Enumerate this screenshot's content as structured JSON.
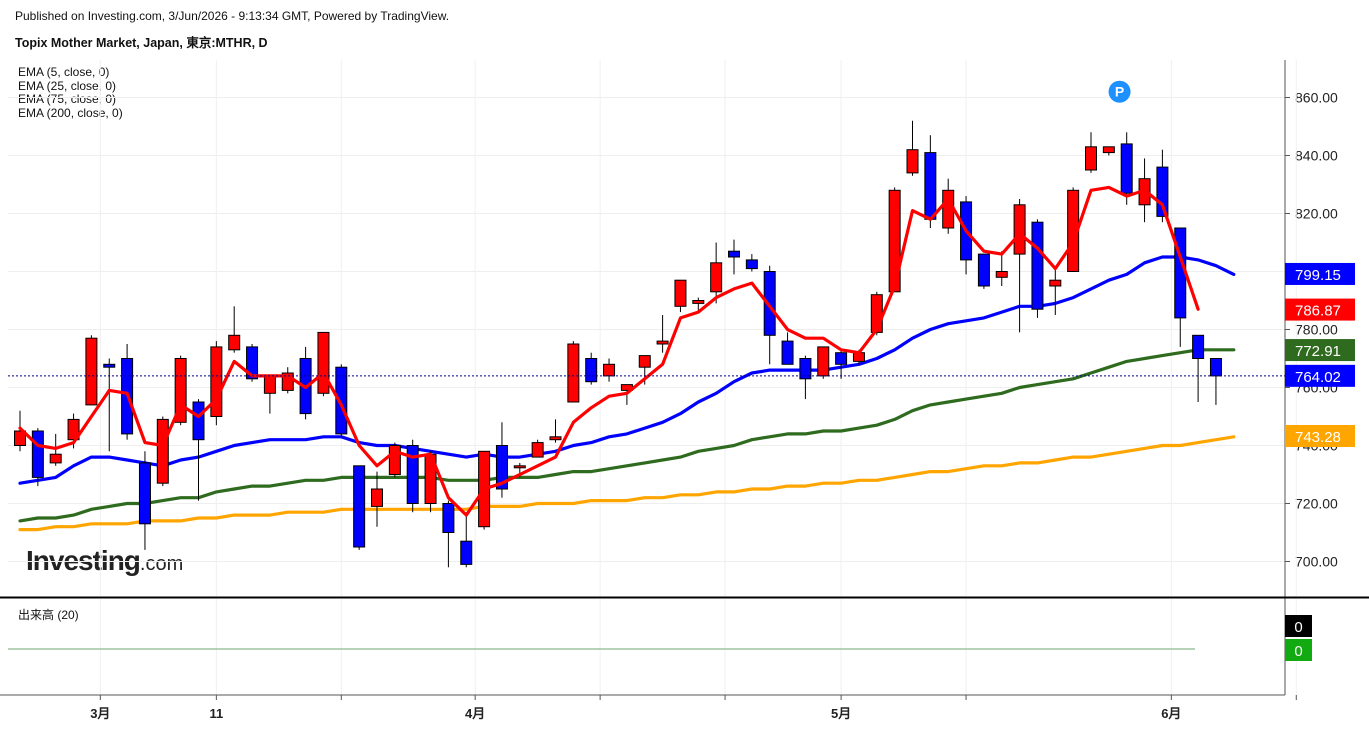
{
  "header": {
    "published": "Published on Investing.com, 3/Jun/2026 - 9:13:34 GMT, Powered by TradingView.",
    "title": "Topix Mother Market, Japan, 東京:MTHR, D"
  },
  "legend": [
    {
      "label": "EMA (5, close, 0)",
      "color": "#ff0000"
    },
    {
      "label": "EMA (25, close, 0)",
      "color": "#0000ff"
    },
    {
      "label": "EMA (75, close, 0)",
      "color": "#2e6b1f"
    },
    {
      "label": "EMA (200, close, 0)",
      "color": "#ffa500"
    }
  ],
  "volume_panel": {
    "label": "出来高 (20)",
    "badges": [
      {
        "text": "0",
        "bg": "#000000"
      },
      {
        "text": "0",
        "bg": "#11aa11"
      }
    ]
  },
  "logo": {
    "main": "Investing",
    "suffix": ".com"
  },
  "marker_label": "P",
  "colors": {
    "up": "#ff0000",
    "down": "#0000ff",
    "wick": "#000000",
    "ema5": "#ff0000",
    "ema25": "#0000ff",
    "ema75": "#2e6b1f",
    "ema200": "#ffa500",
    "marker": "#1e90ff",
    "last_price_line": "#00008b"
  },
  "chart_data": {
    "type": "candlestick",
    "title": "Topix Mother Market, Japan, 東京:MTHR, D",
    "ylim": [
      690,
      868
    ],
    "y_ticks": [
      700,
      720,
      740,
      760,
      780,
      800,
      820,
      840,
      860
    ],
    "y_tick_labels": [
      "700.00",
      "720.00",
      "740.00",
      "760.00",
      "780.00",
      "800.00",
      "820.00",
      "840.00",
      "860.00"
    ],
    "x_labels": [
      {
        "text": "3月",
        "index": 4.5
      },
      {
        "text": "11",
        "index": 11
      },
      {
        "text": "4月",
        "index": 25.5
      },
      {
        "text": "5月",
        "index": 46
      },
      {
        "text": "6月",
        "index": 64.5
      }
    ],
    "x_ticks": [
      4.5,
      11,
      18,
      25.5,
      32.5,
      39.5,
      46,
      53,
      64.5,
      71.5
    ],
    "n_slots": 72,
    "last_price": 764.02,
    "price_badges": [
      {
        "value": 799.15,
        "text": "799.15",
        "series": "ema25"
      },
      {
        "value": 786.87,
        "text": "786.87",
        "series": "ema5"
      },
      {
        "value": 772.91,
        "text": "772.91",
        "series": "ema75"
      },
      {
        "value": 764.02,
        "text": "764.02",
        "series": "last"
      },
      {
        "value": 743.28,
        "text": "743.28",
        "series": "ema200"
      }
    ],
    "candles": [
      {
        "o": 740,
        "h": 752,
        "l": 738,
        "c": 745
      },
      {
        "o": 745,
        "h": 746,
        "l": 726,
        "c": 729
      },
      {
        "o": 734,
        "h": 744,
        "l": 733,
        "c": 737
      },
      {
        "o": 742,
        "h": 751,
        "l": 739,
        "c": 749
      },
      {
        "o": 754,
        "h": 778,
        "l": 754,
        "c": 777
      },
      {
        "o": 768,
        "h": 770,
        "l": 738,
        "c": 767
      },
      {
        "o": 770,
        "h": 775,
        "l": 742,
        "c": 744
      },
      {
        "o": 734,
        "h": 738,
        "l": 704,
        "c": 713
      },
      {
        "o": 727,
        "h": 750,
        "l": 726,
        "c": 749
      },
      {
        "o": 748,
        "h": 771,
        "l": 747,
        "c": 770
      },
      {
        "o": 755,
        "h": 756,
        "l": 721,
        "c": 742
      },
      {
        "o": 750,
        "h": 776,
        "l": 747,
        "c": 774
      },
      {
        "o": 773,
        "h": 788,
        "l": 772,
        "c": 778
      },
      {
        "o": 774,
        "h": 775,
        "l": 762,
        "c": 763
      },
      {
        "o": 758,
        "h": 764,
        "l": 751,
        "c": 764
      },
      {
        "o": 759,
        "h": 767,
        "l": 758,
        "c": 765
      },
      {
        "o": 770,
        "h": 774,
        "l": 749,
        "c": 751
      },
      {
        "o": 758,
        "h": 779,
        "l": 757,
        "c": 779
      },
      {
        "o": 767,
        "h": 768,
        "l": 743,
        "c": 744
      },
      {
        "o": 733,
        "h": 733,
        "l": 704,
        "c": 705
      },
      {
        "o": 719,
        "h": 731,
        "l": 712,
        "c": 725
      },
      {
        "o": 730,
        "h": 741,
        "l": 729,
        "c": 740
      },
      {
        "o": 740,
        "h": 742,
        "l": 717,
        "c": 720
      },
      {
        "o": 720,
        "h": 738,
        "l": 717,
        "c": 737
      },
      {
        "o": 720,
        "h": 721,
        "l": 698,
        "c": 710
      },
      {
        "o": 707,
        "h": 717,
        "l": 698,
        "c": 699
      },
      {
        "o": 712,
        "h": 738,
        "l": 711,
        "c": 738
      },
      {
        "o": 740,
        "h": 748,
        "l": 722,
        "c": 725
      },
      {
        "o": 733,
        "h": 734,
        "l": 729,
        "c": 733
      },
      {
        "o": 736,
        "h": 742,
        "l": 736,
        "c": 741
      },
      {
        "o": 742,
        "h": 749,
        "l": 741,
        "c": 743
      },
      {
        "o": 755,
        "h": 776,
        "l": 755,
        "c": 775
      },
      {
        "o": 770,
        "h": 772,
        "l": 761,
        "c": 762
      },
      {
        "o": 764,
        "h": 770,
        "l": 762,
        "c": 768
      },
      {
        "o": 759,
        "h": 761,
        "l": 754,
        "c": 761
      },
      {
        "o": 767,
        "h": 770,
        "l": 761,
        "c": 771
      },
      {
        "o": 775,
        "h": 785,
        "l": 772,
        "c": 776
      },
      {
        "o": 788,
        "h": 797,
        "l": 786,
        "c": 797
      },
      {
        "o": 789,
        "h": 791,
        "l": 786,
        "c": 790
      },
      {
        "o": 793,
        "h": 810,
        "l": 789,
        "c": 803
      },
      {
        "o": 807,
        "h": 811,
        "l": 799,
        "c": 805
      },
      {
        "o": 804,
        "h": 806,
        "l": 800,
        "c": 801
      },
      {
        "o": 800,
        "h": 802,
        "l": 768,
        "c": 778
      },
      {
        "o": 776,
        "h": 779,
        "l": 768,
        "c": 768
      },
      {
        "o": 770,
        "h": 771,
        "l": 756,
        "c": 763
      },
      {
        "o": 764,
        "h": 774,
        "l": 763,
        "c": 774
      },
      {
        "o": 772,
        "h": 773,
        "l": 763,
        "c": 768
      },
      {
        "o": 769,
        "h": 773,
        "l": 768,
        "c": 772
      },
      {
        "o": 779,
        "h": 793,
        "l": 778,
        "c": 792
      },
      {
        "o": 793,
        "h": 829,
        "l": 793,
        "c": 828
      },
      {
        "o": 834,
        "h": 852,
        "l": 833,
        "c": 842
      },
      {
        "o": 841,
        "h": 847,
        "l": 815,
        "c": 818
      },
      {
        "o": 815,
        "h": 832,
        "l": 813,
        "c": 828
      },
      {
        "o": 824,
        "h": 826,
        "l": 799,
        "c": 804
      },
      {
        "o": 806,
        "h": 806,
        "l": 794,
        "c": 795
      },
      {
        "o": 798,
        "h": 807,
        "l": 795,
        "c": 800
      },
      {
        "o": 806,
        "h": 825,
        "l": 779,
        "c": 823
      },
      {
        "o": 817,
        "h": 818,
        "l": 784,
        "c": 787
      },
      {
        "o": 795,
        "h": 801,
        "l": 785,
        "c": 797
      },
      {
        "o": 800,
        "h": 829,
        "l": 800,
        "c": 828
      },
      {
        "o": 835,
        "h": 848,
        "l": 834,
        "c": 843
      },
      {
        "o": 841,
        "h": 843,
        "l": 840,
        "c": 843
      },
      {
        "o": 844,
        "h": 848,
        "l": 823,
        "c": 827
      },
      {
        "o": 823,
        "h": 839,
        "l": 817,
        "c": 832
      },
      {
        "o": 836,
        "h": 842,
        "l": 817,
        "c": 819
      },
      {
        "o": 815,
        "h": 815,
        "l": 774,
        "c": 784
      },
      {
        "o": 778,
        "h": 778,
        "l": 755,
        "c": 770
      },
      {
        "o": 770,
        "h": 770,
        "l": 754,
        "c": 764
      }
    ],
    "series": [
      {
        "name": "EMA (5, close, 0)",
        "key": "ema5",
        "x0": 0,
        "values": [
          746,
          740,
          739,
          741,
          750,
          759,
          758,
          741,
          740,
          754,
          750,
          756,
          769,
          764,
          764,
          764,
          760,
          765,
          754,
          740,
          733,
          738,
          736,
          737,
          722,
          716,
          725,
          727,
          730,
          733,
          736,
          748,
          753,
          757,
          758,
          763,
          768,
          784,
          786,
          791,
          794,
          796,
          788,
          780,
          777,
          777,
          773,
          772,
          780,
          795,
          821,
          818,
          825,
          814,
          807,
          806,
          813,
          808,
          801,
          810,
          828,
          829,
          826,
          828,
          823,
          805,
          787
        ]
      },
      {
        "name": "EMA (25, close, 0)",
        "key": "ema25",
        "x0": 0,
        "values": [
          727,
          728,
          729,
          733,
          736,
          736,
          735,
          734,
          733,
          735,
          736,
          738,
          740,
          741,
          742,
          742,
          742,
          743,
          743,
          741,
          740,
          740,
          739,
          738,
          737,
          736,
          737,
          736,
          736,
          737,
          738,
          740,
          741,
          743,
          744,
          746,
          748,
          751,
          755,
          758,
          762,
          765,
          766,
          766,
          766,
          766,
          767,
          768,
          770,
          773,
          777,
          780,
          782,
          783,
          784,
          786,
          788,
          788,
          789,
          791,
          794,
          797,
          799,
          803,
          805,
          805,
          804,
          802,
          799
        ]
      },
      {
        "name": "EMA (75, close, 0)",
        "key": "ema75",
        "x0": 0,
        "values": [
          714,
          715,
          715,
          716,
          718,
          719,
          720,
          720,
          721,
          722,
          722,
          724,
          725,
          726,
          726,
          727,
          728,
          728,
          729,
          729,
          729,
          729,
          729,
          729,
          728,
          728,
          728,
          729,
          729,
          729,
          730,
          731,
          731,
          732,
          733,
          734,
          735,
          736,
          738,
          739,
          740,
          742,
          743,
          744,
          744,
          745,
          745,
          746,
          747,
          749,
          752,
          754,
          755,
          756,
          757,
          758,
          760,
          761,
          762,
          763,
          765,
          767,
          769,
          770,
          771,
          772,
          773,
          773,
          773
        ]
      },
      {
        "name": "EMA (200, close, 0)",
        "key": "ema200",
        "x0": 0,
        "values": [
          711,
          711,
          712,
          712,
          713,
          713,
          713,
          714,
          714,
          714,
          715,
          715,
          716,
          716,
          716,
          717,
          717,
          717,
          718,
          718,
          718,
          718,
          718,
          718,
          718,
          718,
          719,
          719,
          719,
          720,
          720,
          720,
          721,
          721,
          721,
          722,
          722,
          723,
          723,
          724,
          724,
          725,
          725,
          726,
          726,
          727,
          727,
          728,
          728,
          729,
          730,
          731,
          731,
          732,
          733,
          733,
          734,
          734,
          735,
          736,
          736,
          737,
          738,
          739,
          740,
          740,
          741,
          742,
          743
        ]
      }
    ]
  }
}
